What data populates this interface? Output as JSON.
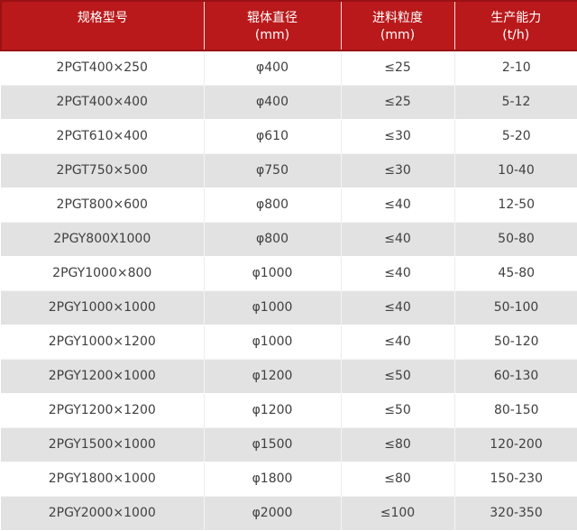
{
  "chart_data": {
    "type": "table",
    "columns": [
      {
        "label": "规格型号",
        "unit": ""
      },
      {
        "label": "辊体直径",
        "unit": "(mm)"
      },
      {
        "label": "进料粒度",
        "unit": "(mm)"
      },
      {
        "label": "生产能力",
        "unit": "(t/h)"
      }
    ],
    "rows": [
      [
        "2PGT400×250",
        "φ400",
        "≤25",
        "2-10"
      ],
      [
        "2PGT400×400",
        "φ400",
        "≤25",
        "5-12"
      ],
      [
        "2PGT610×400",
        "φ610",
        "≤30",
        "5-20"
      ],
      [
        "2PGT750×500",
        "φ750",
        "≤30",
        "10-40"
      ],
      [
        "2PGT800×600",
        "φ800",
        "≤40",
        "12-50"
      ],
      [
        "2PGY800X1000",
        "φ800",
        "≤40",
        "50-80"
      ],
      [
        "2PGY1000×800",
        "φ1000",
        "≤40",
        "45-80"
      ],
      [
        "2PGY1000×1000",
        "φ1000",
        "≤40",
        "50-100"
      ],
      [
        "2PGY1000×1200",
        "φ1000",
        "≤40",
        "50-120"
      ],
      [
        "2PGY1200×1000",
        "φ1200",
        "≤50",
        "60-130"
      ],
      [
        "2PGY1200×1200",
        "φ1200",
        "≤50",
        "80-150"
      ],
      [
        "2PGY1500×1000",
        "φ1500",
        "≤80",
        "120-200"
      ],
      [
        "2PGY1800×1000",
        "φ1800",
        "≤80",
        "150-230"
      ],
      [
        "2PGY2000×1000",
        "φ2000",
        "≤100",
        "320-350"
      ]
    ]
  },
  "colors": {
    "header_bg": "#b9191b",
    "header_border": "#9a1114",
    "header_text": "#ffffff",
    "row_alt_bg": "#e2e2e2",
    "body_text": "#404040"
  }
}
